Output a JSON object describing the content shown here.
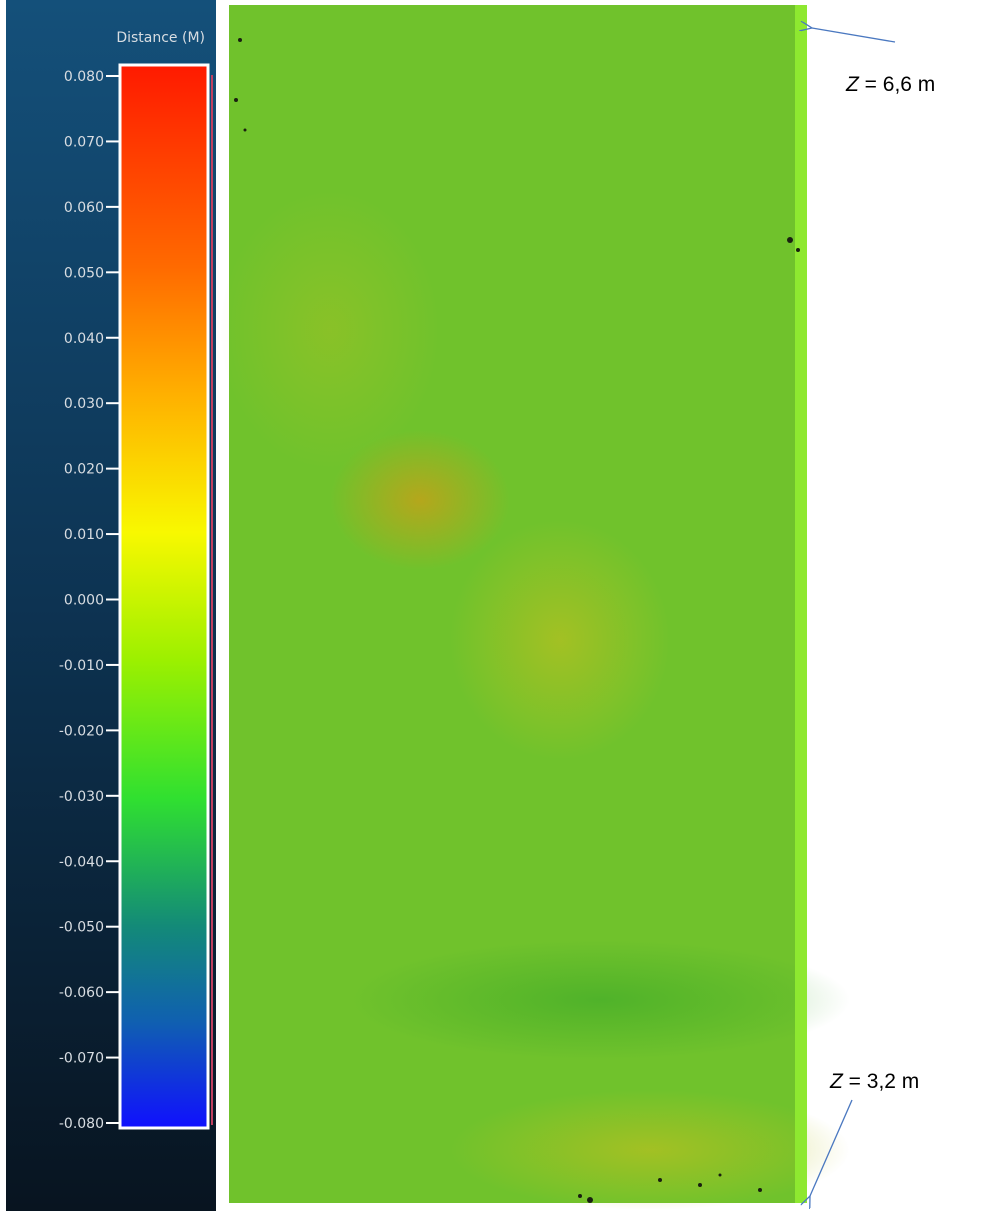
{
  "colorbar": {
    "title": "Distance (M)",
    "ticks": [
      "0.080",
      "0.070",
      "0.060",
      "0.050",
      "0.040",
      "0.030",
      "0.020",
      "0.010",
      "0.000",
      "-0.010",
      "-0.020",
      "-0.030",
      "-0.040",
      "-0.050",
      "-0.060",
      "-0.070",
      "-0.080"
    ]
  },
  "annotations": {
    "top": {
      "variable": "Z",
      "text": "= 6,6 m"
    },
    "bottom": {
      "variable": "Z",
      "text": "= 3,2 m"
    }
  }
}
